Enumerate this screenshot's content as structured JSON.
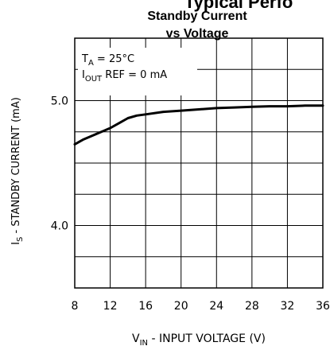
{
  "chart_data": {
    "type": "line",
    "title_cut": "Typical Perfo",
    "title": "Standby Current",
    "subtitle": "vs Voltage",
    "xlabel": {
      "main": "V",
      "sub": "IN",
      "rest": " - INPUT VOLTAGE (V)"
    },
    "ylabel": {
      "main": "I",
      "sub": "S",
      "rest": " - STANDBY CURRENT (mA)"
    },
    "xlim": [
      8,
      36
    ],
    "ylim": [
      3.5,
      5.5
    ],
    "x_ticks": [
      8,
      12,
      16,
      20,
      24,
      28,
      32,
      36
    ],
    "x_tick_labels": [
      "8",
      "12",
      "16",
      "20",
      "24",
      "28",
      "32",
      "36"
    ],
    "y_ticks": [
      4.0,
      5.0
    ],
    "y_tick_labels": [
      "4.0",
      "5.0"
    ],
    "y_grid": [
      3.75,
      4.0,
      4.25,
      4.5,
      4.75,
      5.0,
      5.25
    ],
    "grid": true,
    "annotations": [
      {
        "main": "T",
        "sub": "A",
        "rest": " = 25°C"
      },
      {
        "main": "I",
        "sub": "OUT",
        "rest": " REF = 0 mA"
      }
    ],
    "series": [
      {
        "x": [
          8,
          9,
          10,
          11,
          12,
          13,
          14,
          15,
          16,
          18,
          20,
          22,
          24,
          26,
          28,
          30,
          32,
          34,
          36
        ],
        "y": [
          4.65,
          4.69,
          4.72,
          4.75,
          4.78,
          4.82,
          4.86,
          4.88,
          4.89,
          4.91,
          4.92,
          4.93,
          4.94,
          4.945,
          4.95,
          4.955,
          4.955,
          4.96,
          4.96
        ]
      }
    ]
  }
}
